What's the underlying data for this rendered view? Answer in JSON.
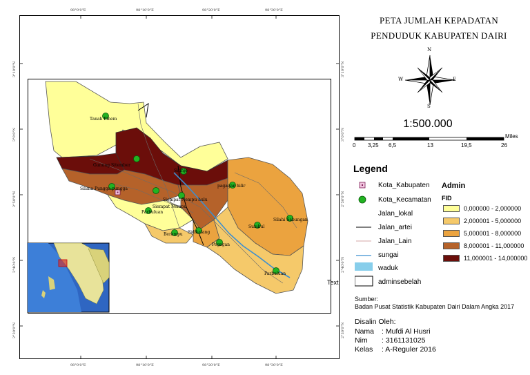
{
  "title": {
    "line1": "PETA JUMLAH KEPADATAN",
    "line2": "PENDUDUK KABUPATEN DAIRI"
  },
  "compass": {
    "n": "N",
    "s": "S",
    "e": "E",
    "w": "W"
  },
  "scale": {
    "ratio": "1:500.000",
    "unit": "Miles",
    "ticks": [
      "0",
      "3,25",
      "6,5",
      "13",
      "19,5",
      "26"
    ]
  },
  "graticule": {
    "top": [
      "98°0'0\"E",
      "98°10'0\"E",
      "98°20'0\"E",
      "98°30'0\"E"
    ],
    "bottom": [
      "98°0'0\"E",
      "98°10'0\"E",
      "98°20'0\"E",
      "98°30'0\"E"
    ],
    "left": [
      "3°10'0\"N",
      "3°0'0\"N",
      "2°50'0\"N",
      "2°40'0\"N",
      "2°30'0\"N"
    ],
    "right": [
      "3°10'0\"N",
      "3°0'0\"N",
      "2°50'0\"N",
      "2°40'0\"N",
      "2°30'0\"N"
    ]
  },
  "places": [
    {
      "name": "Tanah Pinem"
    },
    {
      "name": "Gunung Sitember"
    },
    {
      "name": "Sitinjo"
    },
    {
      "name": "Silima Pungga-pungga"
    },
    {
      "name": "Siempat Nempu"
    },
    {
      "name": "Siempat Nempu hulu"
    },
    {
      "name": "pagagan hilir"
    },
    {
      "name": "Parbuluan"
    },
    {
      "name": "Silahi Sabungan"
    },
    {
      "name": "Sidikalang"
    },
    {
      "name": "Berampu"
    },
    {
      "name": "Sumbul"
    },
    {
      "name": "Pegagan"
    },
    {
      "name": "Parbuluan"
    }
  ],
  "stray_text": "Text",
  "legend": {
    "title": "Legend",
    "items": [
      "Kota_Kabupaten",
      "Kota_Kecamatan",
      "Jalan_lokal",
      "Jalan_artei",
      "Jalan_Lain",
      "sungai",
      "waduk",
      "adminsebelah"
    ],
    "admin_title": "Admin",
    "field": "FID",
    "classes": [
      {
        "label": "0,000000 - 2,000000",
        "color": "#ffff99"
      },
      {
        "label": "2,000001 - 5,000000",
        "color": "#f5c96a"
      },
      {
        "label": "5,000001 - 8,000000",
        "color": "#eba33f"
      },
      {
        "label": "8,000001 - 11,000000",
        "color": "#b5622a"
      },
      {
        "label": "11,000001 - 14,000000",
        "color": "#6b0e0a"
      }
    ]
  },
  "source": {
    "label": "Sumber:",
    "text": "Badan Pusat Statistik Kabupaten Dairi Dalam Angka 2017"
  },
  "credit": {
    "heading": "Disalin Oleh:",
    "rows": [
      {
        "key": "Nama",
        "value": ": Mufdi Al Husri"
      },
      {
        "key": "Nim",
        "value": ": 3161131025"
      },
      {
        "key": "Kelas",
        "value": ": A-Reguler 2016"
      }
    ]
  }
}
